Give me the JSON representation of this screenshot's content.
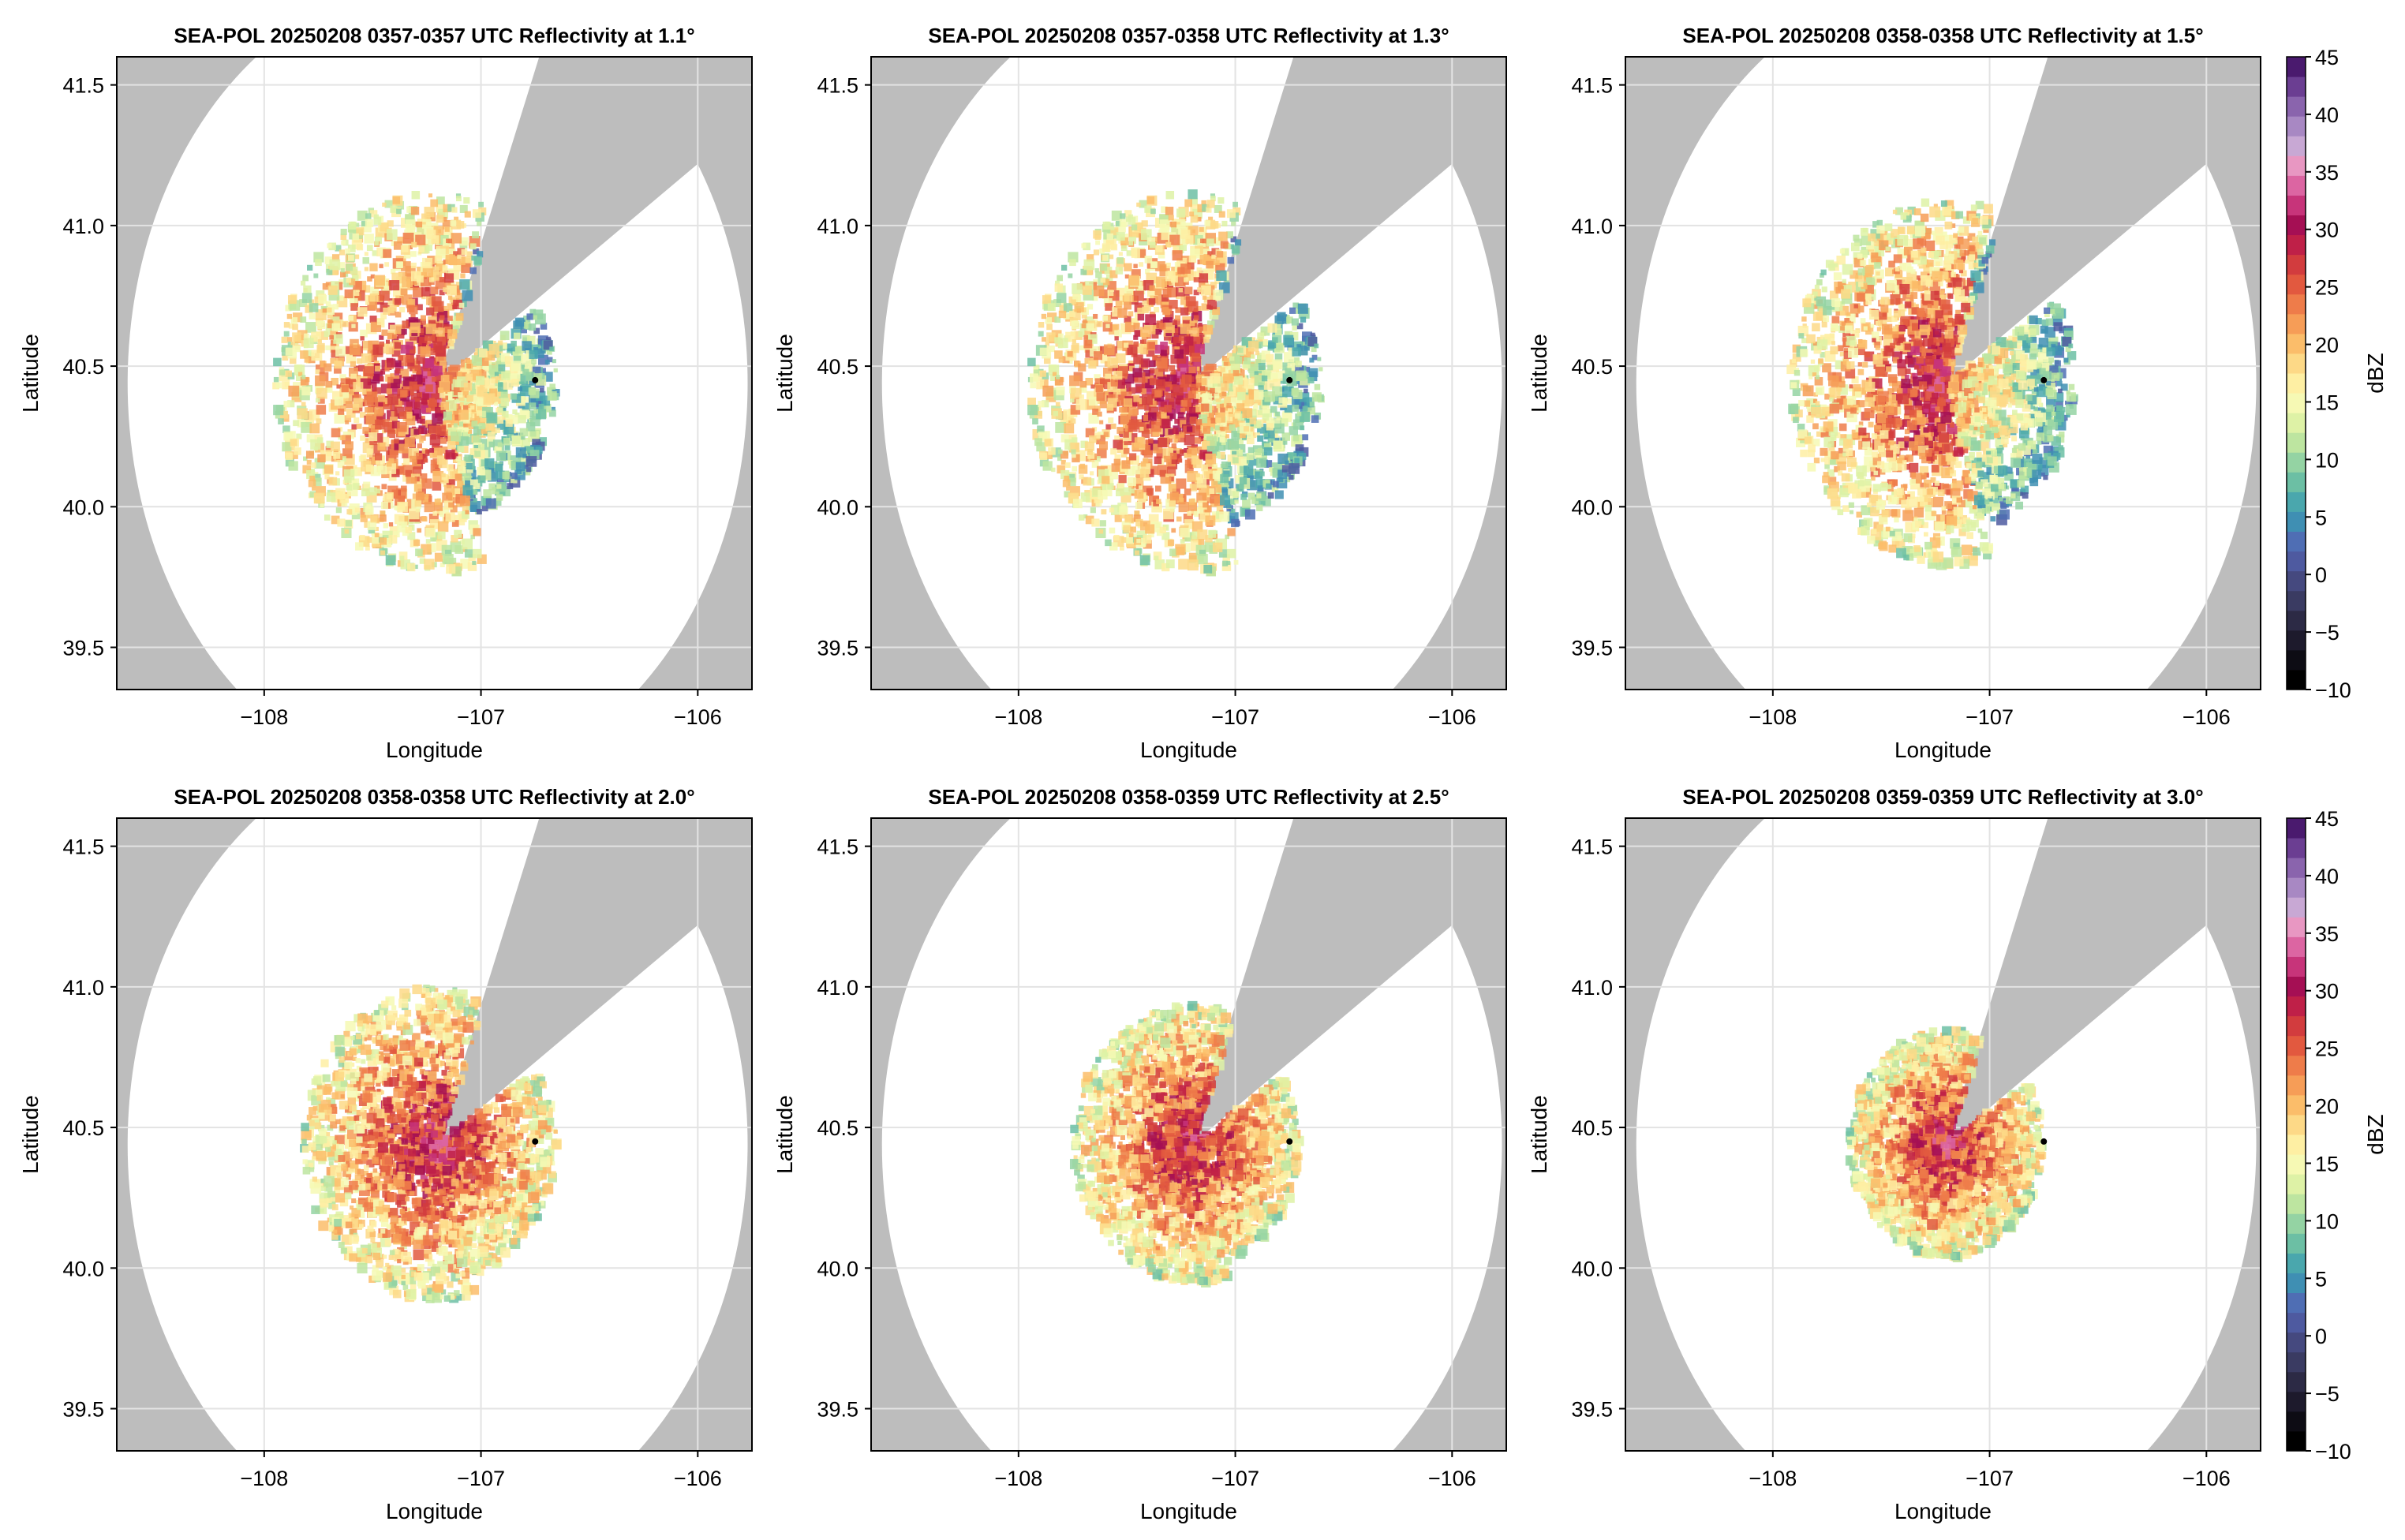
{
  "chart_data": [
    {
      "type": "heatmap",
      "title": "SEA-POL 20250208 0357-0357 UTC Reflectivity at 1.1°",
      "xlabel": "Longitude",
      "ylabel": "Latitude",
      "xlim": [
        -108.68,
        -105.75
      ],
      "ylim": [
        39.35,
        41.6
      ],
      "xticks": [
        "−108",
        "−107",
        "−106"
      ],
      "yticks": [
        "39.5",
        "40.0",
        "40.5",
        "41.0",
        "41.5"
      ],
      "radar_center": [
        -107.2,
        40.44
      ],
      "range_extent_deg": 1.43,
      "blocked_sector_azimuth_deg": [
        22,
        57
      ],
      "station_marker": [
        -106.75,
        40.45
      ],
      "echo_extent_deg": 0.75,
      "echo_east_extent_deg": 0.55,
      "grid": true
    },
    {
      "type": "heatmap",
      "title": "SEA-POL 20250208 0357-0358 UTC Reflectivity at 1.3°",
      "xlabel": "Longitude",
      "ylabel": "Latitude",
      "xlim": [
        -108.68,
        -105.75
      ],
      "ylim": [
        39.35,
        41.6
      ],
      "xticks": [
        "−108",
        "−107",
        "−106"
      ],
      "yticks": [
        "39.5",
        "40.0",
        "40.5",
        "41.0",
        "41.5"
      ],
      "radar_center": [
        -107.2,
        40.44
      ],
      "range_extent_deg": 1.43,
      "blocked_sector_azimuth_deg": [
        22,
        57
      ],
      "station_marker": [
        -106.75,
        40.45
      ],
      "echo_extent_deg": 0.75,
      "echo_east_extent_deg": 0.6,
      "grid": true
    },
    {
      "type": "heatmap",
      "title": "SEA-POL 20250208 0358-0358 UTC Reflectivity at 1.5°",
      "xlabel": "Longitude",
      "ylabel": "Latitude",
      "xlim": [
        -108.68,
        -105.75
      ],
      "ylim": [
        39.35,
        41.6
      ],
      "xticks": [
        "−108",
        "−107",
        "−106"
      ],
      "yticks": [
        "39.5",
        "40.0",
        "40.5",
        "41.0",
        "41.5"
      ],
      "radar_center": [
        -107.2,
        40.44
      ],
      "range_extent_deg": 1.43,
      "blocked_sector_azimuth_deg": [
        22,
        57
      ],
      "station_marker": [
        -106.75,
        40.45
      ],
      "echo_extent_deg": 0.72,
      "echo_east_extent_deg": 0.6,
      "grid": true
    },
    {
      "type": "heatmap",
      "title": "SEA-POL 20250208 0358-0358 UTC Reflectivity at 2.0°",
      "xlabel": "Longitude",
      "ylabel": "Latitude",
      "xlim": [
        -108.68,
        -105.75
      ],
      "ylim": [
        39.35,
        41.6
      ],
      "xticks": [
        "−108",
        "−107",
        "−106"
      ],
      "yticks": [
        "39.5",
        "40.0",
        "40.5",
        "41.0",
        "41.5"
      ],
      "radar_center": [
        -107.2,
        40.44
      ],
      "range_extent_deg": 1.43,
      "blocked_sector_azimuth_deg": [
        22,
        57
      ],
      "station_marker": [
        -106.75,
        40.45
      ],
      "echo_extent_deg": 0.62,
      "echo_east_extent_deg": 0.55,
      "grid": true
    },
    {
      "type": "heatmap",
      "title": "SEA-POL 20250208 0358-0359 UTC Reflectivity at 2.5°",
      "xlabel": "Longitude",
      "ylabel": "Latitude",
      "xlim": [
        -108.68,
        -105.75
      ],
      "ylim": [
        39.35,
        41.6
      ],
      "xticks": [
        "−108",
        "−107",
        "−106"
      ],
      "yticks": [
        "39.5",
        "40.0",
        "40.5",
        "41.0",
        "41.5"
      ],
      "radar_center": [
        -107.2,
        40.44
      ],
      "range_extent_deg": 1.43,
      "blocked_sector_azimuth_deg": [
        22,
        57
      ],
      "station_marker": [
        -106.75,
        40.45
      ],
      "echo_extent_deg": 0.55,
      "echo_east_extent_deg": 0.5,
      "grid": true
    },
    {
      "type": "heatmap",
      "title": "SEA-POL 20250208 0359-0359 UTC Reflectivity at 3.0°",
      "xlabel": "Longitude",
      "ylabel": "Latitude",
      "xlim": [
        -108.68,
        -105.75
      ],
      "ylim": [
        39.35,
        41.6
      ],
      "xticks": [
        "−108",
        "−107",
        "−106"
      ],
      "yticks": [
        "39.5",
        "40.0",
        "40.5",
        "41.0",
        "41.5"
      ],
      "radar_center": [
        -107.2,
        40.44
      ],
      "range_extent_deg": 1.43,
      "blocked_sector_azimuth_deg": [
        22,
        57
      ],
      "station_marker": [
        -106.75,
        40.45
      ],
      "echo_extent_deg": 0.45,
      "echo_east_extent_deg": 0.45,
      "grid": true
    }
  ],
  "colorbar": {
    "label": "dBZ",
    "range": [
      -10,
      45
    ],
    "ticks": [
      "−10",
      "−5",
      "0",
      "5",
      "10",
      "15",
      "20",
      "25",
      "30",
      "35",
      "40",
      "45"
    ],
    "tick_values": [
      -10,
      -5,
      0,
      5,
      10,
      15,
      20,
      25,
      30,
      35,
      40,
      45
    ],
    "colors": [
      "#000000",
      "#0d0c14",
      "#1d1a2c",
      "#2c2a45",
      "#3a3b62",
      "#45497f",
      "#4e5aa0",
      "#4f6eb4",
      "#3f8fb3",
      "#4aa7ad",
      "#6cbfa4",
      "#94d3a3",
      "#bde5a0",
      "#def2a6",
      "#f6f9b4",
      "#feefa3",
      "#fdd987",
      "#fbbd6a",
      "#f69d57",
      "#ee7c4a",
      "#e2593f",
      "#d23c3e",
      "#bf2048",
      "#a50f54",
      "#c7347a",
      "#dc65a2",
      "#e897c2",
      "#c8a8d4",
      "#a888c3",
      "#8a64ad",
      "#6b3e92",
      "#4a1a6e"
    ]
  },
  "colors": {
    "outside_range": "#bdbdbd",
    "in_range": "#ffffff",
    "gridline": "#e3e3e3",
    "station": "#000000"
  }
}
